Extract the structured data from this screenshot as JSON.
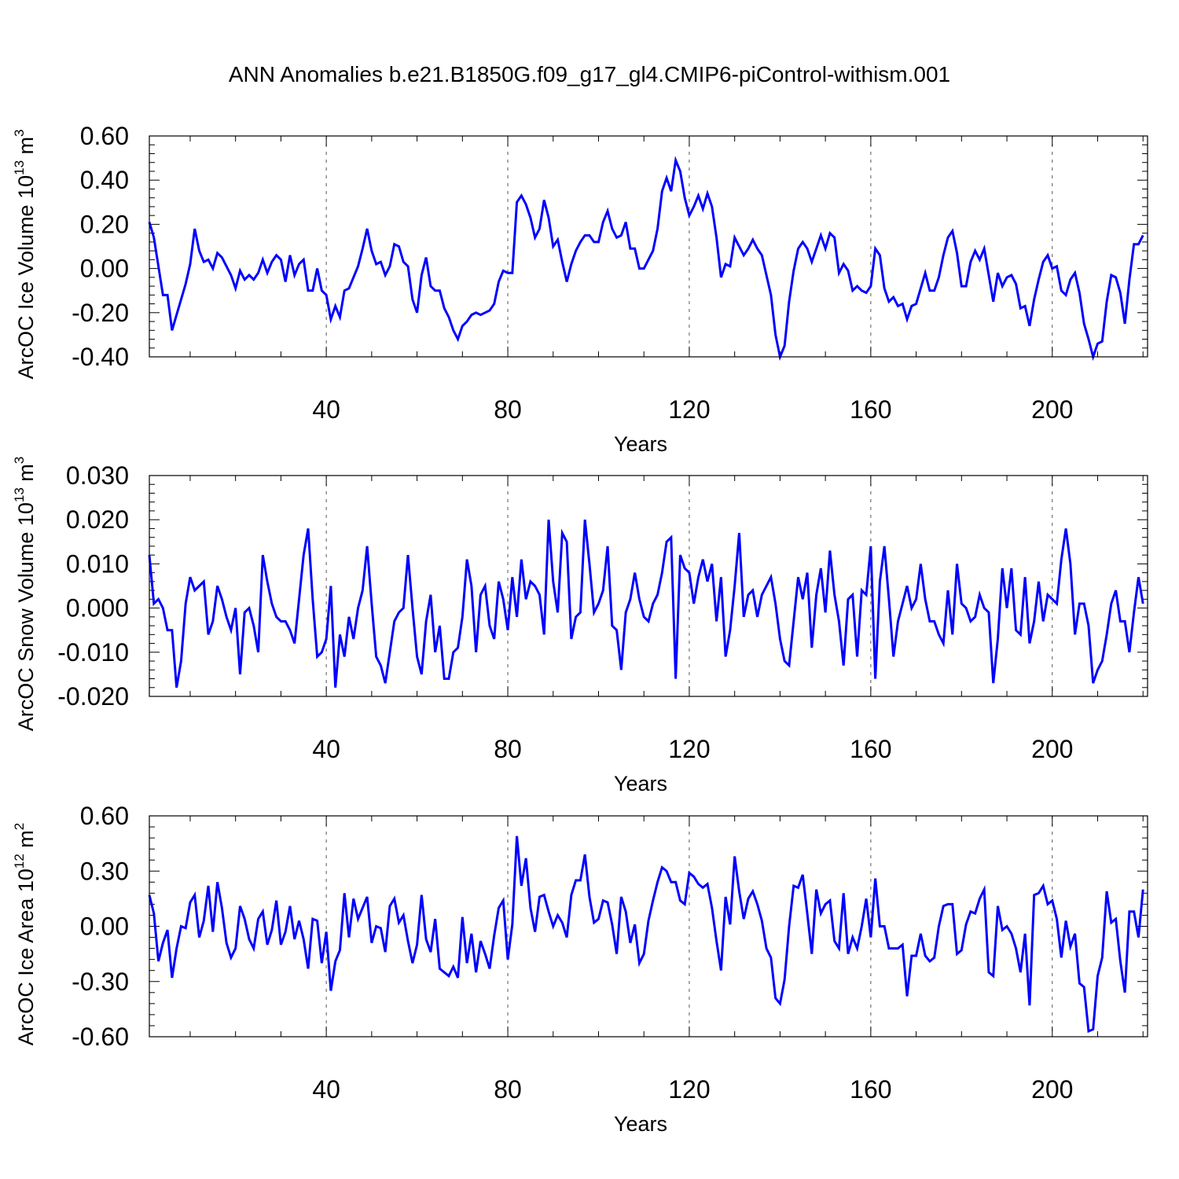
{
  "title": "ANN Anomalies b.e21.B1850G.f09_g17_gl4.CMIP6-piControl-withism.001",
  "colors": {
    "line": "#0000ff",
    "axis": "#000000",
    "grid": "#555555"
  },
  "chart_data": [
    {
      "type": "line",
      "ylabel": "ArcOC Ice Volume 10",
      "ylabel_exp": "13",
      "ylabel_unit": " m",
      "ylabel_unit_exp": "3",
      "xlabel": "Years",
      "xlim": [
        1,
        221
      ],
      "ylim": [
        -0.4,
        0.6
      ],
      "xticks": [
        40,
        80,
        120,
        160,
        200
      ],
      "xtick_labels": [
        "40",
        "80",
        "120",
        "160",
        "200"
      ],
      "yticks": [
        -0.4,
        -0.2,
        0.0,
        0.2,
        0.4,
        0.6
      ],
      "ytick_labels": [
        "-0.40",
        "-0.20",
        "0.00",
        "0.20",
        "0.40",
        "0.60"
      ],
      "grid": "vertical dashed at x ticks",
      "x_start": 1,
      "series": [
        {
          "name": "ArcOC Ice Volume",
          "values": [
            0.21,
            0.14,
            0.01,
            -0.12,
            -0.12,
            -0.28,
            -0.21,
            -0.14,
            -0.07,
            0.02,
            0.18,
            0.08,
            0.03,
            0.04,
            0.0,
            0.07,
            0.05,
            0.01,
            -0.03,
            -0.09,
            -0.01,
            -0.05,
            -0.03,
            -0.05,
            -0.02,
            0.04,
            -0.02,
            0.03,
            0.06,
            0.04,
            -0.06,
            0.06,
            -0.03,
            0.02,
            0.04,
            -0.1,
            -0.1,
            0.0,
            -0.1,
            -0.12,
            -0.23,
            -0.17,
            -0.22,
            -0.1,
            -0.09,
            -0.04,
            0.01,
            0.09,
            0.18,
            0.08,
            0.02,
            0.03,
            -0.03,
            0.01,
            0.11,
            0.1,
            0.03,
            0.01,
            -0.14,
            -0.2,
            -0.03,
            0.05,
            -0.08,
            -0.1,
            -0.1,
            -0.18,
            -0.22,
            -0.28,
            -0.32,
            -0.26,
            -0.24,
            -0.21,
            -0.2,
            -0.21,
            -0.2,
            -0.19,
            -0.16,
            -0.06,
            -0.01,
            -0.02,
            -0.02,
            0.3,
            0.33,
            0.29,
            0.23,
            0.14,
            0.18,
            0.31,
            0.23,
            0.1,
            0.13,
            0.03,
            -0.06,
            0.02,
            0.08,
            0.12,
            0.15,
            0.15,
            0.12,
            0.12,
            0.21,
            0.26,
            0.18,
            0.14,
            0.15,
            0.21,
            0.09,
            0.09,
            0.0,
            0.0,
            0.04,
            0.08,
            0.18,
            0.35,
            0.41,
            0.35,
            0.49,
            0.44,
            0.32,
            0.24,
            0.28,
            0.33,
            0.27,
            0.34,
            0.28,
            0.14,
            -0.04,
            0.02,
            0.01,
            0.14,
            0.1,
            0.06,
            0.09,
            0.13,
            0.09,
            0.06,
            -0.03,
            -0.12,
            -0.3,
            -0.4,
            -0.35,
            -0.15,
            -0.01,
            0.09,
            0.12,
            0.09,
            0.03,
            0.09,
            0.15,
            0.09,
            0.16,
            0.14,
            -0.02,
            0.02,
            -0.01,
            -0.1,
            -0.08,
            -0.1,
            -0.11,
            -0.08,
            0.09,
            0.06,
            -0.09,
            -0.15,
            -0.13,
            -0.17,
            -0.16,
            -0.23,
            -0.17,
            -0.16,
            -0.09,
            -0.02,
            -0.1,
            -0.1,
            -0.04,
            0.06,
            0.14,
            0.17,
            0.07,
            -0.08,
            -0.08,
            0.03,
            0.08,
            0.04,
            0.09,
            -0.03,
            -0.15,
            -0.02,
            -0.08,
            -0.04,
            -0.03,
            -0.07,
            -0.18,
            -0.17,
            -0.26,
            -0.14,
            -0.05,
            0.03,
            0.06,
            0.0,
            0.01,
            -0.1,
            -0.12,
            -0.05,
            -0.02,
            -0.11,
            -0.25,
            -0.32,
            -0.4,
            -0.34,
            -0.33,
            -0.15,
            -0.03,
            -0.04,
            -0.11,
            -0.25,
            -0.05,
            0.11,
            0.11,
            0.15
          ]
        }
      ]
    },
    {
      "type": "line",
      "ylabel": "ArcOC Snow Volume 10",
      "ylabel_exp": "13",
      "ylabel_unit": " m",
      "ylabel_unit_exp": "3",
      "xlabel": "Years",
      "xlim": [
        1,
        221
      ],
      "ylim": [
        -0.02,
        0.03
      ],
      "xticks": [
        40,
        80,
        120,
        160,
        200
      ],
      "xtick_labels": [
        "40",
        "80",
        "120",
        "160",
        "200"
      ],
      "yticks": [
        -0.02,
        -0.01,
        0.0,
        0.01,
        0.02,
        0.03
      ],
      "ytick_labels": [
        "-0.020",
        "-0.010",
        "0.000",
        "0.010",
        "0.020",
        "0.030"
      ],
      "grid": "vertical dashed at x ticks",
      "x_start": 1,
      "series": [
        {
          "name": "ArcOC Snow Volume",
          "values": [
            0.012,
            0.001,
            0.002,
            0.0,
            -0.005,
            -0.005,
            -0.018,
            -0.012,
            0.001,
            0.007,
            0.004,
            0.005,
            0.006,
            -0.006,
            -0.003,
            0.005,
            0.002,
            -0.002,
            -0.005,
            0.0,
            -0.015,
            -0.001,
            0.0,
            -0.004,
            -0.01,
            0.012,
            0.006,
            0.001,
            -0.002,
            -0.003,
            -0.003,
            -0.005,
            -0.008,
            0.002,
            0.012,
            0.018,
            0.002,
            -0.011,
            -0.01,
            -0.007,
            0.005,
            -0.018,
            -0.006,
            -0.011,
            -0.002,
            -0.007,
            0.0,
            0.004,
            0.014,
            0.001,
            -0.011,
            -0.013,
            -0.017,
            -0.01,
            -0.003,
            -0.001,
            0.0,
            0.012,
            0.0,
            -0.011,
            -0.015,
            -0.003,
            0.003,
            -0.01,
            -0.004,
            -0.016,
            -0.016,
            -0.01,
            -0.009,
            -0.002,
            0.011,
            0.005,
            -0.01,
            0.003,
            0.005,
            -0.004,
            -0.007,
            0.006,
            0.002,
            -0.005,
            0.007,
            -0.002,
            0.011,
            0.002,
            0.006,
            0.005,
            0.003,
            -0.006,
            0.02,
            0.006,
            -0.001,
            0.017,
            0.015,
            -0.007,
            -0.002,
            -0.001,
            0.02,
            0.01,
            -0.001,
            0.001,
            0.004,
            0.014,
            -0.004,
            -0.005,
            -0.014,
            -0.001,
            0.002,
            0.008,
            0.002,
            -0.002,
            -0.003,
            0.001,
            0.003,
            0.008,
            0.015,
            0.016,
            -0.016,
            0.012,
            0.009,
            0.008,
            0.001,
            0.007,
            0.011,
            0.006,
            0.01,
            -0.003,
            0.007,
            -0.011,
            -0.005,
            0.005,
            0.017,
            -0.002,
            0.003,
            0.004,
            -0.002,
            0.003,
            0.005,
            0.007,
            0.001,
            -0.007,
            -0.012,
            -0.013,
            -0.003,
            0.007,
            0.002,
            0.008,
            -0.009,
            0.003,
            0.009,
            -0.001,
            0.013,
            0.003,
            -0.003,
            -0.013,
            0.002,
            0.003,
            -0.011,
            0.004,
            0.003,
            0.014,
            -0.016,
            0.006,
            0.014,
            0.002,
            -0.011,
            -0.003,
            0.001,
            0.005,
            0.0,
            0.002,
            0.01,
            0.002,
            -0.003,
            -0.003,
            -0.006,
            -0.008,
            0.004,
            -0.006,
            0.01,
            0.001,
            0.0,
            -0.003,
            -0.002,
            0.003,
            0.0,
            -0.001,
            -0.017,
            -0.007,
            0.009,
            0.0,
            0.009,
            -0.005,
            -0.006,
            0.007,
            -0.008,
            -0.003,
            0.006,
            -0.003,
            0.003,
            0.002,
            0.001,
            0.011,
            0.018,
            0.01,
            -0.006,
            0.001,
            0.001,
            -0.004,
            -0.017,
            -0.014,
            -0.012,
            -0.006,
            0.001,
            0.004,
            -0.003,
            -0.003,
            -0.01,
            -0.001,
            0.007,
            0.001
          ]
        }
      ]
    },
    {
      "type": "line",
      "ylabel": "ArcOC Ice Area 10",
      "ylabel_exp": "12",
      "ylabel_unit": " m",
      "ylabel_unit_exp": "2",
      "xlabel": "Years",
      "xlim": [
        1,
        221
      ],
      "ylim": [
        -0.6,
        0.6
      ],
      "xticks": [
        40,
        80,
        120,
        160,
        200
      ],
      "xtick_labels": [
        "40",
        "80",
        "120",
        "160",
        "200"
      ],
      "yticks": [
        -0.6,
        -0.3,
        0.0,
        0.3,
        0.6
      ],
      "ytick_labels": [
        "-0.60",
        "-0.30",
        "0.00",
        "0.30",
        "0.60"
      ],
      "grid": "vertical dashed at x ticks",
      "x_start": 1,
      "series": [
        {
          "name": "ArcOC Ice Area",
          "values": [
            0.17,
            0.07,
            -0.19,
            -0.09,
            -0.02,
            -0.28,
            -0.12,
            0.0,
            -0.01,
            0.13,
            0.17,
            -0.06,
            0.03,
            0.22,
            -0.03,
            0.24,
            0.1,
            -0.09,
            -0.17,
            -0.12,
            0.11,
            0.04,
            -0.07,
            -0.12,
            0.04,
            0.08,
            -0.1,
            -0.02,
            0.14,
            -0.1,
            -0.03,
            0.11,
            -0.07,
            0.03,
            -0.07,
            -0.23,
            0.04,
            0.03,
            -0.2,
            -0.03,
            -0.35,
            -0.19,
            -0.13,
            0.18,
            -0.06,
            0.15,
            0.04,
            0.1,
            0.16,
            -0.09,
            0.0,
            -0.01,
            -0.14,
            0.11,
            0.15,
            0.02,
            0.06,
            -0.08,
            -0.2,
            -0.1,
            0.17,
            -0.07,
            -0.14,
            0.04,
            -0.23,
            -0.25,
            -0.27,
            -0.22,
            -0.28,
            0.05,
            -0.2,
            -0.04,
            -0.25,
            -0.08,
            -0.15,
            -0.23,
            -0.05,
            0.1,
            0.14,
            -0.18,
            0.01,
            0.49,
            0.22,
            0.37,
            0.1,
            -0.03,
            0.16,
            0.17,
            0.08,
            0.0,
            0.06,
            0.02,
            -0.06,
            0.17,
            0.25,
            0.25,
            0.39,
            0.16,
            0.02,
            0.04,
            0.14,
            0.13,
            0.01,
            -0.15,
            0.16,
            0.08,
            -0.09,
            0.01,
            -0.2,
            -0.15,
            0.03,
            0.14,
            0.24,
            0.32,
            0.3,
            0.24,
            0.24,
            0.14,
            0.12,
            0.29,
            0.27,
            0.23,
            0.21,
            0.23,
            0.1,
            -0.08,
            -0.24,
            0.16,
            0.01,
            0.38,
            0.19,
            0.04,
            0.15,
            0.19,
            0.12,
            0.03,
            -0.12,
            -0.17,
            -0.39,
            -0.42,
            -0.29,
            0.0,
            0.22,
            0.21,
            0.28,
            0.07,
            -0.15,
            0.2,
            0.07,
            0.12,
            0.14,
            -0.08,
            -0.12,
            0.18,
            -0.15,
            -0.06,
            -0.12,
            0.0,
            0.15,
            -0.06,
            0.26,
            0.0,
            0.0,
            -0.12,
            -0.12,
            -0.12,
            -0.1,
            -0.38,
            -0.16,
            -0.16,
            -0.04,
            -0.16,
            -0.19,
            -0.17,
            0.0,
            0.11,
            0.12,
            0.12,
            -0.15,
            -0.13,
            0.01,
            0.08,
            0.07,
            0.15,
            0.2,
            -0.25,
            -0.27,
            0.11,
            -0.02,
            0.0,
            -0.04,
            -0.12,
            -0.25,
            -0.04,
            -0.43,
            0.17,
            0.18,
            0.22,
            0.12,
            0.14,
            0.04,
            -0.17,
            0.03,
            -0.11,
            -0.04,
            -0.31,
            -0.33,
            -0.57,
            -0.56,
            -0.27,
            -0.17,
            0.19,
            0.02,
            0.04,
            -0.19,
            -0.36,
            0.08,
            0.08,
            -0.06,
            0.2
          ]
        }
      ]
    }
  ]
}
